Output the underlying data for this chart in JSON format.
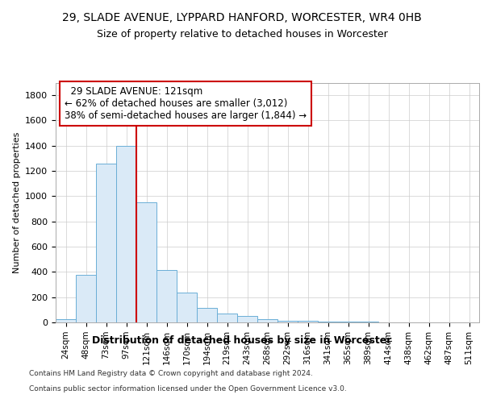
{
  "title_line1": "29, SLADE AVENUE, LYPPARD HANFORD, WORCESTER, WR4 0HB",
  "title_line2": "Size of property relative to detached houses in Worcester",
  "xlabel": "Distribution of detached houses by size in Worcester",
  "ylabel": "Number of detached properties",
  "footer_line1": "Contains HM Land Registry data © Crown copyright and database right 2024.",
  "footer_line2": "Contains public sector information licensed under the Open Government Licence v3.0.",
  "annotation_line1": "29 SLADE AVENUE: 121sqm",
  "annotation_line2": "← 62% of detached houses are smaller (3,012)",
  "annotation_line3": "38% of semi-detached houses are larger (1,844) →",
  "property_bin_index": 4,
  "bar_color": "#daeaf7",
  "bar_edge_color": "#6aaed6",
  "vline_color": "#cc0000",
  "categories": [
    "24sqm",
    "48sqm",
    "73sqm",
    "97sqm",
    "121sqm",
    "146sqm",
    "170sqm",
    "194sqm",
    "219sqm",
    "243sqm",
    "268sqm",
    "292sqm",
    "316sqm",
    "341sqm",
    "365sqm",
    "389sqm",
    "414sqm",
    "438sqm",
    "462sqm",
    "487sqm",
    "511sqm"
  ],
  "values": [
    25,
    380,
    1260,
    1400,
    950,
    415,
    235,
    115,
    70,
    50,
    25,
    15,
    12,
    5,
    5,
    5,
    3,
    3,
    3,
    3,
    3
  ],
  "ylim": [
    0,
    1900
  ],
  "yticks": [
    0,
    200,
    400,
    600,
    800,
    1000,
    1200,
    1400,
    1600,
    1800
  ],
  "background_color": "#ffffff",
  "grid_color": "#cccccc"
}
